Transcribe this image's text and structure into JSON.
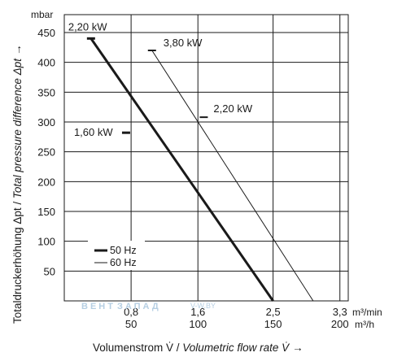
{
  "chart_data": {
    "type": "line",
    "y_unit": "mbar",
    "x_primary_unit": "m³/min",
    "x_secondary_unit": "m³/h",
    "xlabel_main": "Volumenstrom V̇ / ",
    "xlabel_italic": "Volumetric flow rate V̇",
    "ylabel_main": "Totaldruckerhöhung Δpt / ",
    "ylabel_italic": "Total pressure difference Δpt",
    "arrow": "→",
    "xlim": [
      0,
      3.4
    ],
    "ylim": [
      0,
      480
    ],
    "y_ticks": [
      50,
      100,
      150,
      200,
      250,
      300,
      350,
      400,
      450
    ],
    "y_tick_labels": [
      "50",
      "100",
      "150",
      "200",
      "250",
      "300",
      "350",
      "400",
      "450"
    ],
    "x_ticks": [
      0.8,
      1.6,
      2.5,
      3.3
    ],
    "x_tick_labels_min": [
      "0,8",
      "1,6",
      "2,5",
      "3,3"
    ],
    "x_tick_labels_h": [
      "50",
      "100",
      "150",
      "200"
    ],
    "grid": true,
    "legend_position": "bottom-left",
    "series": [
      {
        "name": "50 Hz",
        "style": "thick",
        "x": [
          0.32,
          2.5
        ],
        "y": [
          440,
          0
        ],
        "markers": [
          {
            "x": 0.32,
            "y": 440,
            "label": "2,20 kW"
          },
          {
            "x": 0.74,
            "y": 282,
            "label": "1,60 kW"
          }
        ]
      },
      {
        "name": "60 Hz",
        "style": "thin",
        "x": [
          1.05,
          2.98
        ],
        "y": [
          420,
          0
        ],
        "markers": [
          {
            "x": 1.05,
            "y": 420,
            "label": "3,80 kW"
          },
          {
            "x": 1.67,
            "y": 308,
            "label": "2,20 kW"
          }
        ]
      }
    ]
  },
  "watermark": {
    "brand_a": "ВЕНТ",
    "brand_b": "ЗАПАД",
    "url": "V-W.BY"
  }
}
